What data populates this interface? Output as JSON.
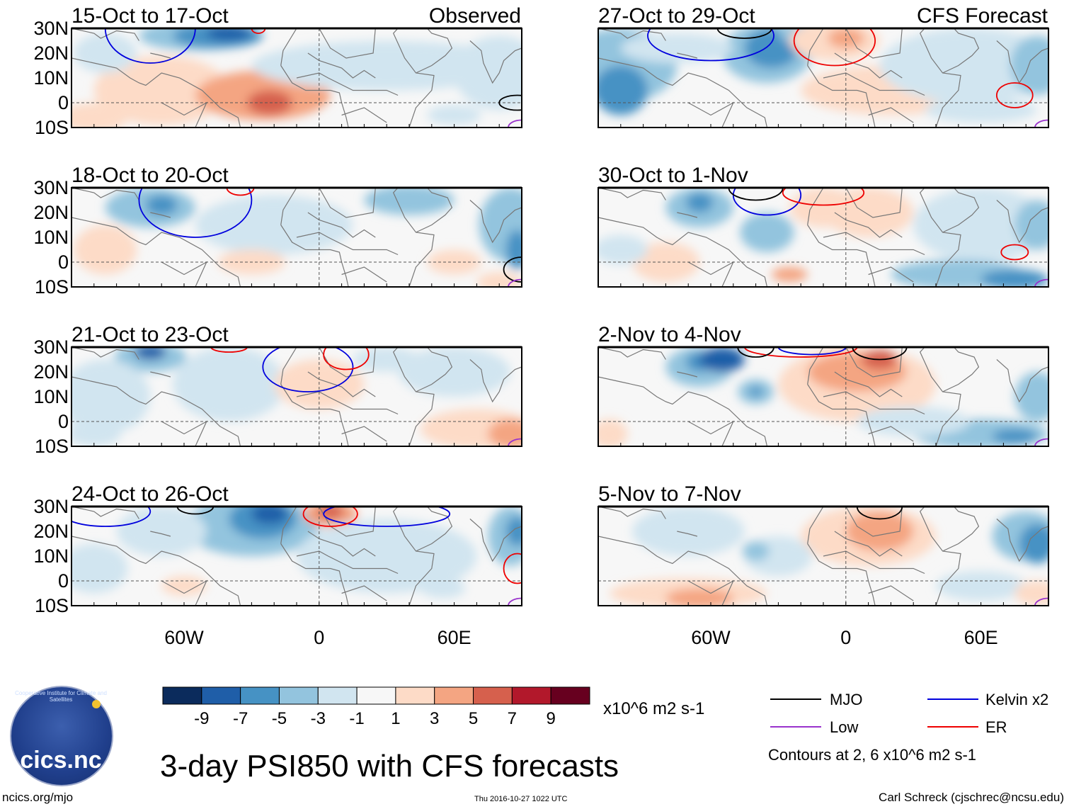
{
  "chart_data": {
    "type": "heatmap",
    "title": "3-day PSI850 with CFS forecasts",
    "variable": "PSI850 anomaly",
    "units": "x10^6 m2 s-1",
    "columns": [
      {
        "label": "Observed"
      },
      {
        "label": "CFS Forecast"
      }
    ],
    "panels": [
      {
        "id": "obs-1",
        "column": 0,
        "row": 0,
        "period": "15-Oct to 17-Oct",
        "header": "Observed"
      },
      {
        "id": "obs-2",
        "column": 0,
        "row": 1,
        "period": "18-Oct to 20-Oct"
      },
      {
        "id": "obs-3",
        "column": 0,
        "row": 2,
        "period": "21-Oct to 23-Oct"
      },
      {
        "id": "obs-4",
        "column": 0,
        "row": 3,
        "period": "24-Oct to 26-Oct"
      },
      {
        "id": "fc-1",
        "column": 1,
        "row": 0,
        "period": "27-Oct to 29-Oct",
        "header": "CFS Forecast"
      },
      {
        "id": "fc-2",
        "column": 1,
        "row": 1,
        "period": "30-Oct to 1-Nov"
      },
      {
        "id": "fc-3",
        "column": 1,
        "row": 2,
        "period": "2-Nov to 4-Nov"
      },
      {
        "id": "fc-4",
        "column": 1,
        "row": 3,
        "period": "5-Nov to 7-Nov"
      }
    ],
    "x_axis": {
      "range": [
        -110,
        90
      ],
      "ticks": [
        {
          "value": -60,
          "label": "60W"
        },
        {
          "value": 0,
          "label": "0"
        },
        {
          "value": 60,
          "label": "60E"
        }
      ]
    },
    "y_axis": {
      "range": [
        -10,
        30
      ],
      "ticks": [
        {
          "value": 30,
          "label": "30N"
        },
        {
          "value": 20,
          "label": "20N"
        },
        {
          "value": 10,
          "label": "10N"
        },
        {
          "value": 0,
          "label": "0"
        },
        {
          "value": -10,
          "label": "10S"
        }
      ]
    },
    "colorbar": {
      "colors": [
        "#0b2b5c",
        "#1f5ea8",
        "#4692c4",
        "#93c4de",
        "#d1e5f0",
        "#f7f7f7",
        "#fddbc7",
        "#f4a582",
        "#d6604d",
        "#b2182b",
        "#67001f"
      ],
      "labels": [
        "-9",
        "-7",
        "-5",
        "-3",
        "-1",
        "1",
        "3",
        "5",
        "7",
        "9"
      ],
      "units": "x10^6 m2 s-1"
    },
    "legend": [
      {
        "label": "MJO",
        "color": "#000000"
      },
      {
        "label": "Kelvin x2",
        "color": "#0000dd"
      },
      {
        "label": "Low",
        "color": "#9932cc"
      },
      {
        "label": "ER",
        "color": "#ee0000"
      }
    ],
    "contour_note": "Contours at 2, 6 x10^6 m2 s-1"
  },
  "footer": {
    "website": "ncics.org/mjo",
    "timestamp": "Thu 2016-10-27 1022 UTC",
    "author": "Carl Schreck (cjschrec@ncsu.edu)"
  },
  "logo": {
    "text": "cics.nc",
    "arc_text": "Cooperative Institute for Climate and Satellites"
  }
}
